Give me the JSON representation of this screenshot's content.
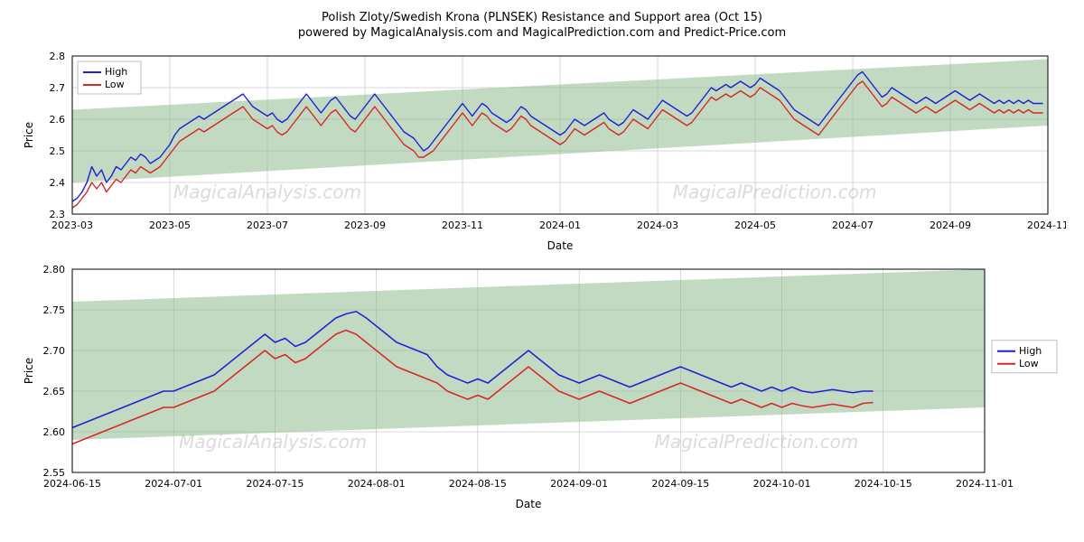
{
  "title": "Polish Zloty/Swedish Krona (PLNSEK) Resistance and Support area (Oct 15)",
  "subtitle": "powered by MagicalAnalysis.com and MagicalPrediction.com and Predict-Price.com",
  "watermark_left": "MagicalAnalysis.com",
  "watermark_right": "MagicalPrediction.com",
  "legend": {
    "high": "High",
    "low": "Low"
  },
  "colors": {
    "high": "#1f1fd6",
    "low": "#d62728",
    "band": "#8fbc8f",
    "band_opacity": 0.55,
    "grid": "#b0b0b0",
    "bg": "#ffffff"
  },
  "chart1": {
    "type": "line",
    "xlabel": "Date",
    "ylabel": "Price",
    "ylim": [
      2.3,
      2.8
    ],
    "yticks": [
      2.3,
      2.4,
      2.5,
      2.6,
      2.7,
      2.8
    ],
    "xticks": [
      "2023-03",
      "2023-05",
      "2023-07",
      "2023-09",
      "2023-11",
      "2024-01",
      "2024-03",
      "2024-05",
      "2024-07",
      "2024-09",
      "2024-11"
    ],
    "xdomain": [
      0,
      200
    ],
    "band": {
      "y0_start": 2.4,
      "y1_start": 2.63,
      "y0_end": 2.58,
      "y1_end": 2.79
    },
    "high": [
      2.34,
      2.35,
      2.37,
      2.4,
      2.45,
      2.42,
      2.44,
      2.4,
      2.42,
      2.45,
      2.44,
      2.46,
      2.48,
      2.47,
      2.49,
      2.48,
      2.46,
      2.47,
      2.48,
      2.5,
      2.52,
      2.55,
      2.57,
      2.58,
      2.59,
      2.6,
      2.61,
      2.6,
      2.61,
      2.62,
      2.63,
      2.64,
      2.65,
      2.66,
      2.67,
      2.68,
      2.66,
      2.64,
      2.63,
      2.62,
      2.61,
      2.62,
      2.6,
      2.59,
      2.6,
      2.62,
      2.64,
      2.66,
      2.68,
      2.66,
      2.64,
      2.62,
      2.64,
      2.66,
      2.67,
      2.65,
      2.63,
      2.61,
      2.6,
      2.62,
      2.64,
      2.66,
      2.68,
      2.66,
      2.64,
      2.62,
      2.6,
      2.58,
      2.56,
      2.55,
      2.54,
      2.52,
      2.5,
      2.51,
      2.53,
      2.55,
      2.57,
      2.59,
      2.61,
      2.63,
      2.65,
      2.63,
      2.61,
      2.63,
      2.65,
      2.64,
      2.62,
      2.61,
      2.6,
      2.59,
      2.6,
      2.62,
      2.64,
      2.63,
      2.61,
      2.6,
      2.59,
      2.58,
      2.57,
      2.56,
      2.55,
      2.56,
      2.58,
      2.6,
      2.59,
      2.58,
      2.59,
      2.6,
      2.61,
      2.62,
      2.6,
      2.59,
      2.58,
      2.59,
      2.61,
      2.63,
      2.62,
      2.61,
      2.6,
      2.62,
      2.64,
      2.66,
      2.65,
      2.64,
      2.63,
      2.62,
      2.61,
      2.62,
      2.64,
      2.66,
      2.68,
      2.7,
      2.69,
      2.7,
      2.71,
      2.7,
      2.71,
      2.72,
      2.71,
      2.7,
      2.71,
      2.73,
      2.72,
      2.71,
      2.7,
      2.69,
      2.67,
      2.65,
      2.63,
      2.62,
      2.61,
      2.6,
      2.59,
      2.58,
      2.6,
      2.62,
      2.64,
      2.66,
      2.68,
      2.7,
      2.72,
      2.74,
      2.75,
      2.73,
      2.71,
      2.69,
      2.67,
      2.68,
      2.7,
      2.69,
      2.68,
      2.67,
      2.66,
      2.65,
      2.66,
      2.67,
      2.66,
      2.65,
      2.66,
      2.67,
      2.68,
      2.69,
      2.68,
      2.67,
      2.66,
      2.67,
      2.68,
      2.67,
      2.66,
      2.65,
      2.66,
      2.65,
      2.66,
      2.65,
      2.66,
      2.65,
      2.66,
      2.65,
      2.65,
      2.65
    ],
    "low": [
      2.32,
      2.33,
      2.35,
      2.37,
      2.4,
      2.38,
      2.4,
      2.37,
      2.39,
      2.41,
      2.4,
      2.42,
      2.44,
      2.43,
      2.45,
      2.44,
      2.43,
      2.44,
      2.45,
      2.47,
      2.49,
      2.51,
      2.53,
      2.54,
      2.55,
      2.56,
      2.57,
      2.56,
      2.57,
      2.58,
      2.59,
      2.6,
      2.61,
      2.62,
      2.63,
      2.64,
      2.62,
      2.6,
      2.59,
      2.58,
      2.57,
      2.58,
      2.56,
      2.55,
      2.56,
      2.58,
      2.6,
      2.62,
      2.64,
      2.62,
      2.6,
      2.58,
      2.6,
      2.62,
      2.63,
      2.61,
      2.59,
      2.57,
      2.56,
      2.58,
      2.6,
      2.62,
      2.64,
      2.62,
      2.6,
      2.58,
      2.56,
      2.54,
      2.52,
      2.51,
      2.5,
      2.48,
      2.48,
      2.49,
      2.5,
      2.52,
      2.54,
      2.56,
      2.58,
      2.6,
      2.62,
      2.6,
      2.58,
      2.6,
      2.62,
      2.61,
      2.59,
      2.58,
      2.57,
      2.56,
      2.57,
      2.59,
      2.61,
      2.6,
      2.58,
      2.57,
      2.56,
      2.55,
      2.54,
      2.53,
      2.52,
      2.53,
      2.55,
      2.57,
      2.56,
      2.55,
      2.56,
      2.57,
      2.58,
      2.59,
      2.57,
      2.56,
      2.55,
      2.56,
      2.58,
      2.6,
      2.59,
      2.58,
      2.57,
      2.59,
      2.61,
      2.63,
      2.62,
      2.61,
      2.6,
      2.59,
      2.58,
      2.59,
      2.61,
      2.63,
      2.65,
      2.67,
      2.66,
      2.67,
      2.68,
      2.67,
      2.68,
      2.69,
      2.68,
      2.67,
      2.68,
      2.7,
      2.69,
      2.68,
      2.67,
      2.66,
      2.64,
      2.62,
      2.6,
      2.59,
      2.58,
      2.57,
      2.56,
      2.55,
      2.57,
      2.59,
      2.61,
      2.63,
      2.65,
      2.67,
      2.69,
      2.71,
      2.72,
      2.7,
      2.68,
      2.66,
      2.64,
      2.65,
      2.67,
      2.66,
      2.65,
      2.64,
      2.63,
      2.62,
      2.63,
      2.64,
      2.63,
      2.62,
      2.63,
      2.64,
      2.65,
      2.66,
      2.65,
      2.64,
      2.63,
      2.64,
      2.65,
      2.64,
      2.63,
      2.62,
      2.63,
      2.62,
      2.63,
      2.62,
      2.63,
      2.62,
      2.63,
      2.62,
      2.62,
      2.62
    ]
  },
  "chart2": {
    "type": "line",
    "xlabel": "Date",
    "ylabel": "Price",
    "ylim": [
      2.55,
      2.8
    ],
    "yticks": [
      2.55,
      2.6,
      2.65,
      2.7,
      2.75,
      2.8
    ],
    "xticks": [
      "2024-06-15",
      "2024-07-01",
      "2024-07-15",
      "2024-08-01",
      "2024-08-15",
      "2024-09-01",
      "2024-09-15",
      "2024-10-01",
      "2024-10-15",
      "2024-11-01"
    ],
    "xdomain": [
      0,
      90
    ],
    "band": {
      "y0_start": 2.59,
      "y1_start": 2.76,
      "y0_end": 2.63,
      "y1_end": 2.8
    },
    "high": [
      2.605,
      2.61,
      2.615,
      2.62,
      2.625,
      2.63,
      2.635,
      2.64,
      2.645,
      2.65,
      2.65,
      2.655,
      2.66,
      2.665,
      2.67,
      2.68,
      2.69,
      2.7,
      2.71,
      2.72,
      2.71,
      2.715,
      2.705,
      2.71,
      2.72,
      2.73,
      2.74,
      2.745,
      2.748,
      2.74,
      2.73,
      2.72,
      2.71,
      2.705,
      2.7,
      2.695,
      2.68,
      2.67,
      2.665,
      2.66,
      2.665,
      2.66,
      2.67,
      2.68,
      2.69,
      2.7,
      2.69,
      2.68,
      2.67,
      2.665,
      2.66,
      2.665,
      2.67,
      2.665,
      2.66,
      2.655,
      2.66,
      2.665,
      2.67,
      2.675,
      2.68,
      2.675,
      2.67,
      2.665,
      2.66,
      2.655,
      2.66,
      2.655,
      2.65,
      2.655,
      2.65,
      2.655,
      2.65,
      2.648,
      2.65,
      2.652,
      2.65,
      2.648,
      2.65,
      2.65
    ],
    "low": [
      2.585,
      2.59,
      2.595,
      2.6,
      2.605,
      2.61,
      2.615,
      2.62,
      2.625,
      2.63,
      2.63,
      2.635,
      2.64,
      2.645,
      2.65,
      2.66,
      2.67,
      2.68,
      2.69,
      2.7,
      2.69,
      2.695,
      2.685,
      2.69,
      2.7,
      2.71,
      2.72,
      2.725,
      2.72,
      2.71,
      2.7,
      2.69,
      2.68,
      2.675,
      2.67,
      2.665,
      2.66,
      2.65,
      2.645,
      2.64,
      2.645,
      2.64,
      2.65,
      2.66,
      2.67,
      2.68,
      2.67,
      2.66,
      2.65,
      2.645,
      2.64,
      2.645,
      2.65,
      2.645,
      2.64,
      2.635,
      2.64,
      2.645,
      2.65,
      2.655,
      2.66,
      2.655,
      2.65,
      2.645,
      2.64,
      2.635,
      2.64,
      2.635,
      2.63,
      2.635,
      2.63,
      2.635,
      2.632,
      2.63,
      2.632,
      2.634,
      2.632,
      2.63,
      2.635,
      2.636
    ]
  }
}
